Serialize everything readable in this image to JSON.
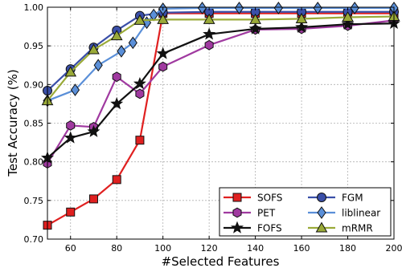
{
  "chart_data": {
    "type": "line",
    "title": "",
    "xlabel": "#Selected Features",
    "ylabel": "Test Accuracy (%)",
    "xlim": [
      50,
      200
    ],
    "ylim": [
      0.7,
      1.0
    ],
    "xticks": [
      60,
      80,
      100,
      120,
      140,
      160,
      180,
      200
    ],
    "yticks": [
      0.7,
      0.75,
      0.8,
      0.85,
      0.9,
      0.95,
      1.0
    ],
    "ytick_labels": [
      "0.70",
      "0.75",
      "0.80",
      "0.85",
      "0.90",
      "0.95",
      "1.00"
    ],
    "grid": true,
    "legend_position": "bottom-right",
    "series": [
      {
        "name": "SOFS",
        "color": "#e02020",
        "marker": "square",
        "x": [
          50,
          60,
          70,
          80,
          90,
          100,
          120,
          140,
          160,
          180,
          200
        ],
        "y": [
          0.718,
          0.735,
          0.752,
          0.777,
          0.828,
          0.992,
          0.992,
          0.992,
          0.992,
          0.992,
          0.992
        ]
      },
      {
        "name": "PET",
        "color": "#a03aa0",
        "marker": "hexagon",
        "x": [
          50,
          60,
          70,
          80,
          90,
          100,
          120,
          140,
          160,
          180,
          200
        ],
        "y": [
          0.798,
          0.847,
          0.845,
          0.91,
          0.888,
          0.923,
          0.951,
          0.971,
          0.972,
          0.976,
          0.983
        ]
      },
      {
        "name": "FOFS",
        "color": "#111111",
        "marker": "star",
        "x": [
          50,
          60,
          70,
          80,
          90,
          100,
          120,
          140,
          160,
          180,
          200
        ],
        "y": [
          0.805,
          0.831,
          0.839,
          0.875,
          0.901,
          0.94,
          0.965,
          0.972,
          0.974,
          0.978,
          0.979
        ]
      },
      {
        "name": "FGM",
        "color": "#3a4fa8",
        "marker": "circle",
        "x": [
          50,
          60,
          70,
          80,
          90,
          100,
          120,
          140,
          160,
          180,
          200
        ],
        "y": [
          0.892,
          0.92,
          0.948,
          0.97,
          0.989,
          0.993,
          0.994,
          0.994,
          0.994,
          0.994,
          0.994
        ]
      },
      {
        "name": "liblinear",
        "color": "#5a8fd8",
        "marker": "diamond",
        "x": [
          50,
          62,
          72,
          82,
          87,
          93,
          96,
          100,
          117,
          133,
          150,
          167,
          183,
          200
        ],
        "y": [
          0.879,
          0.893,
          0.925,
          0.943,
          0.954,
          0.98,
          0.99,
          0.998,
          0.999,
          0.999,
          0.999,
          0.999,
          0.999,
          0.999
        ]
      },
      {
        "name": "mRMR",
        "color": "#9aaa38",
        "marker": "triangle",
        "x": [
          50,
          60,
          70,
          80,
          90,
          100,
          120,
          140,
          160,
          180,
          200
        ],
        "y": [
          0.879,
          0.916,
          0.945,
          0.963,
          0.983,
          0.984,
          0.984,
          0.984,
          0.985,
          0.987,
          0.988
        ]
      }
    ]
  }
}
